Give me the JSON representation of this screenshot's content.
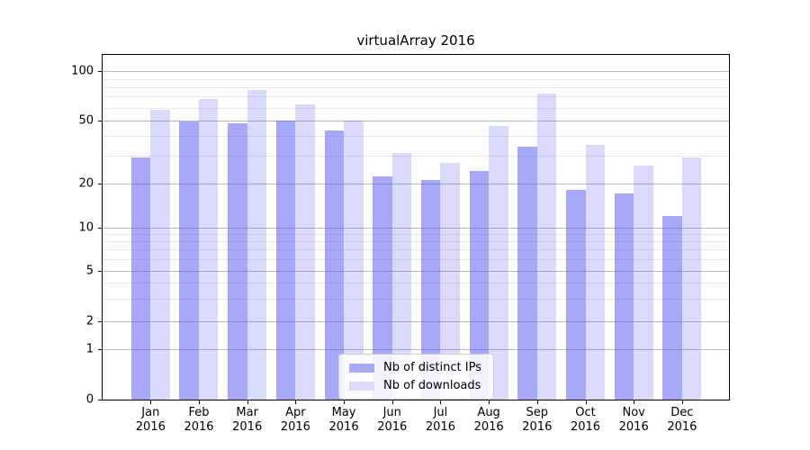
{
  "title": "virtualArray 2016",
  "chart_data": {
    "type": "bar",
    "categories": [
      "Jan",
      "Feb",
      "Mar",
      "Apr",
      "May",
      "Jun",
      "Jul",
      "Aug",
      "Sep",
      "Oct",
      "Nov",
      "Dec"
    ],
    "year_label": "2016",
    "series": [
      {
        "name": "Nb of distinct IPs",
        "values": [
          29,
          49,
          48,
          50,
          43,
          22,
          21,
          24,
          34,
          18,
          17,
          12
        ],
        "bar_color": "rgba(82,82,245,0.50)",
        "legend_color": "#a9a9f7"
      },
      {
        "name": "Nb of downloads",
        "values": [
          58,
          68,
          77,
          63,
          50,
          31,
          27,
          46,
          73,
          35,
          26,
          29
        ],
        "bar_color": "rgba(82,82,245,0.21)",
        "legend_color": "#dcdcfa"
      }
    ],
    "yticks": [
      0,
      1,
      2,
      5,
      10,
      20,
      50,
      100
    ],
    "ytick_labels": [
      "0",
      "1",
      "2",
      "5",
      "10",
      "20",
      "50",
      "100"
    ],
    "minor_yticks": [
      3,
      4,
      6,
      7,
      8,
      9,
      30,
      40,
      60,
      70,
      80,
      90
    ],
    "yscale": "log-like",
    "ylim": [
      0,
      126
    ],
    "grid": true,
    "legend_position": "lower center",
    "title": "virtualArray 2016"
  },
  "colors": {
    "major_grid": "#b9b9b9",
    "minor_grid": "#e9e9e9",
    "spine": "#000000",
    "legend_border": "#cccccc"
  }
}
